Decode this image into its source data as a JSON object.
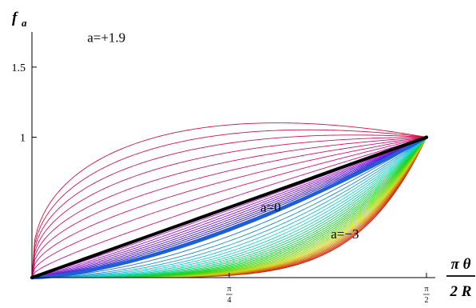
{
  "chart_data": {
    "type": "line",
    "title": "",
    "ylabel": "f",
    "ylabel_subscript": "a",
    "xlabel": {
      "numerator": "π θ",
      "denominator": "2 R"
    },
    "xlim": [
      0,
      1.5708
    ],
    "ylim": [
      0,
      1.75
    ],
    "x_ticks": [
      {
        "value": 0.7854,
        "numerator": "π",
        "denominator": "4"
      },
      {
        "value": 1.5708,
        "numerator": "π",
        "denominator": "2"
      }
    ],
    "y_ticks": [
      {
        "value": 1,
        "label": "1"
      },
      {
        "value": 1.5,
        "label": "1.5"
      }
    ],
    "family": {
      "a_min": -3,
      "a_max": 1.9,
      "a_step": 0.1,
      "highlighted": [
        {
          "a": 0,
          "color": "#1f5fd6",
          "width": 4.5
        },
        {
          "a": 1,
          "color": "#000000",
          "width": 4
        }
      ]
    },
    "annotations": [
      {
        "text": "a=+1.9",
        "x": 0.22,
        "y": 1.68
      },
      {
        "text": "a=0",
        "x": 0.91,
        "y": 0.47
      },
      {
        "text": "a=−3",
        "x": 1.19,
        "y": 0.28
      }
    ],
    "grid": false,
    "legend": "none"
  }
}
